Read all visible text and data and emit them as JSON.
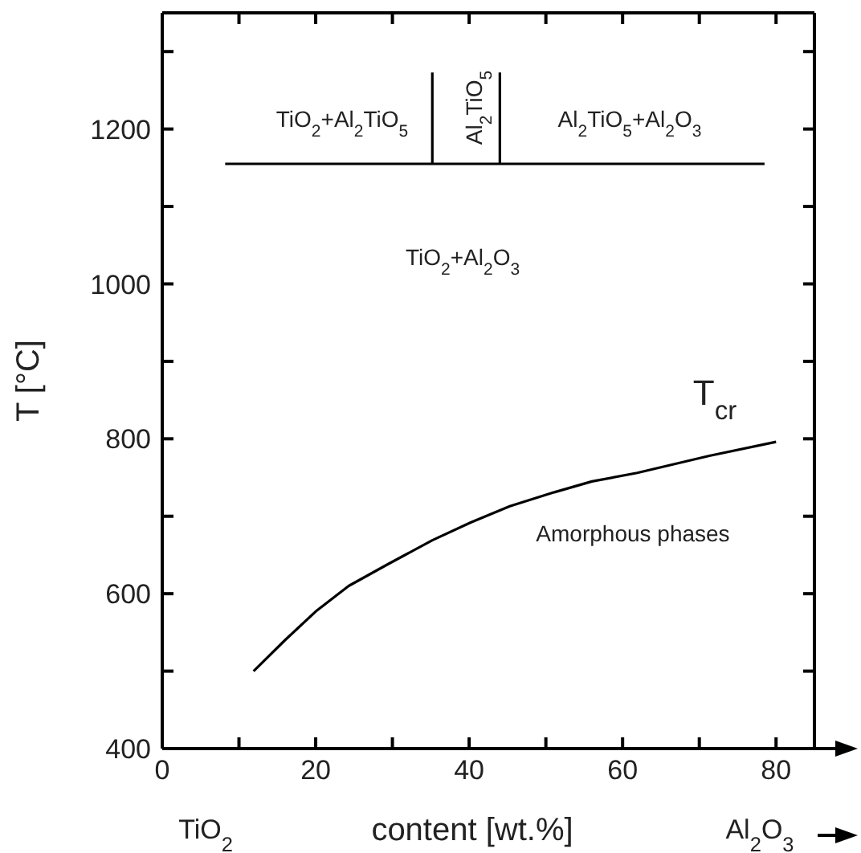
{
  "chart_data": {
    "type": "line",
    "xlabel": "content [wt.%]",
    "ylabel": "T [°C]",
    "xlim": [
      0,
      85
    ],
    "ylim": [
      400,
      1350
    ],
    "xticks": [
      0,
      {
        "value": 10,
        "label": null
      },
      20,
      {
        "value": 30,
        "label": null
      },
      40,
      {
        "value": 50,
        "label": null
      },
      60,
      {
        "value": 70,
        "label": null
      },
      80
    ],
    "yticks": [
      400,
      {
        "value": 500,
        "label": null
      },
      600,
      {
        "value": 700,
        "label": null
      },
      800,
      {
        "value": 900,
        "label": null
      },
      1000,
      {
        "value": 1100,
        "label": null
      },
      1200,
      {
        "value": 1300,
        "label": null
      }
    ],
    "grid": false,
    "marker": "none",
    "line_style": "solid",
    "series": [
      {
        "color": "#000000",
        "x": [
          11.9,
          16,
          20,
          24.3,
          29.4,
          35.2,
          40.2,
          45.3,
          51.1,
          56,
          61.9,
          71.3,
          80
        ],
        "values": [
          500,
          540,
          577,
          610,
          638,
          669,
          692,
          713,
          731,
          745,
          756,
          778,
          796
        ]
      },
      {
        "color": "#000000",
        "x": [
          8.2,
          78.5
        ],
        "values": [
          1155,
          1155
        ]
      },
      {
        "color": "#000000",
        "x": [
          35.2,
          35.2
        ],
        "values": [
          1155,
          1273
        ]
      },
      {
        "color": "#000000",
        "x": [
          44,
          44
        ],
        "values": [
          1155,
          1273
        ]
      }
    ],
    "annotations": [
      "TiO$_{2}$+Al$_{2}$TiO$_{5}$",
      "Al$_{2}$TiO$_{5}$",
      "Al$_{2}$TiO$_{5}$+Al$_{2}$O$_{3}$",
      "TiO$_{2}$+Al$_{2}$O$_{3}$",
      "T$_{cr}$",
      "Amorphous phases",
      "TiO$_{2}$",
      "Al$_{2}$O$_{3}$"
    ]
  }
}
